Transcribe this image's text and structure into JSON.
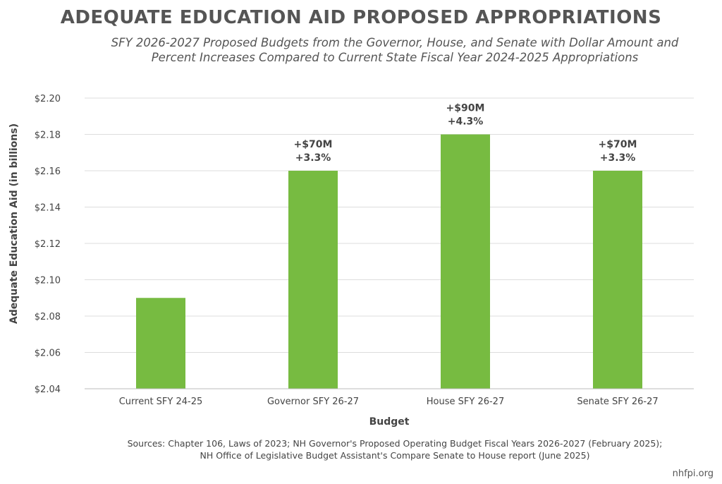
{
  "title": "ADEQUATE EDUCATION AID PROPOSED APPROPRIATIONS",
  "subtitle_line1": "SFY 2026-2027 Proposed Budgets from the Governor, House, and Senate with Dollar Amount and",
  "subtitle_line2": "Percent Increases Compared to Current State Fiscal Year 2024-2025 Appropriations",
  "sources_line1": "Sources: Chapter 106, Laws of 2023; NH Governor's Proposed Operating Budget Fiscal Years 2026-2027 (February 2025);",
  "sources_line2": "NH Office of Legislative Budget Assistant's Compare Senate to House report (June 2025)",
  "footer": "nhfpi.org",
  "colors": {
    "bar": "#77bb41",
    "grid": "#dddddd",
    "text": "#444444"
  },
  "chart_data": {
    "type": "bar",
    "xlabel": "Budget",
    "ylabel": "Adequate Education Aid (in billions)",
    "categories": [
      "Current SFY 24-25",
      "Governor SFY 26-27",
      "House SFY 26-27",
      "Senate SFY 26-27"
    ],
    "values": [
      2.09,
      2.16,
      2.18,
      2.16
    ],
    "ylim": [
      2.04,
      2.2
    ],
    "yticks": [
      "$2.04",
      "$2.06",
      "$2.08",
      "$2.10",
      "$2.12",
      "$2.14",
      "$2.16",
      "$2.18",
      "$2.20"
    ],
    "labels": [
      [],
      [
        "+$70M",
        "+3.3%"
      ],
      [
        "+$90M",
        "+4.3%"
      ],
      [
        "+$70M",
        "+3.3%"
      ]
    ],
    "grid": true,
    "legend": "none"
  }
}
